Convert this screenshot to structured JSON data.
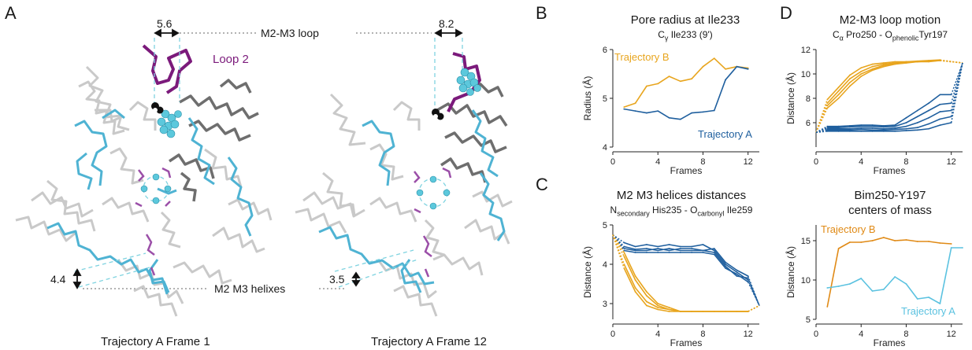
{
  "panels": {
    "A": {
      "letter": "A",
      "loop_label": "M2-M3 loop",
      "helix_label": "M2 M3 helixes",
      "loop2_label": "Loop 2",
      "frame1": {
        "caption": "Trajectory A Frame 1",
        "loop_distance": "5.6",
        "helix_distance": "4.4"
      },
      "frame12": {
        "caption": "Trajectory A Frame 12",
        "loop_distance": "8.2",
        "helix_distance": "3.5"
      }
    },
    "B": {
      "letter": "B",
      "title": "Pore radius at Ile233",
      "subtitle": "Cγ Ile233 (9')"
    },
    "C": {
      "letter": "C",
      "title": "M2 M3 helices distances",
      "subtitle_parts": [
        "N",
        "secondary",
        " His235 - O",
        "carbonyl",
        " Ile259"
      ]
    },
    "D": {
      "letter": "D",
      "title": "M2-M3 loop motion",
      "subtitle_parts": [
        "C",
        "α",
        " Pro250 - O",
        "phenolic",
        "Tyr197"
      ]
    },
    "E": {
      "title_line1": "Bim250-Y197",
      "title_line2": "centers of mass"
    }
  },
  "colors": {
    "traj_a": "#1f5f9e",
    "traj_b": "#e8a51e",
    "traj_b_dark": "#e08a16",
    "traj_a_light": "#5bc2e0",
    "loop2": "#7b1a7b",
    "cyan": "#4fb3d3"
  },
  "chart_data": [
    {
      "id": "B",
      "type": "line",
      "title": "Pore radius at Ile233",
      "subtitle": "Cγ Ile233 (9')",
      "xlabel": "Frames",
      "ylabel": "Radius (Å)",
      "xlim": [
        0,
        13
      ],
      "ylim": [
        4,
        6
      ],
      "xticks": [
        0,
        4,
        8,
        12
      ],
      "yticks": [
        4,
        5,
        6
      ],
      "series": [
        {
          "name": "Trajectory B",
          "color": "#e8a51e",
          "x": [
            1,
            2,
            3,
            4,
            5,
            6,
            7,
            8,
            9,
            10,
            11,
            12
          ],
          "y": [
            4.82,
            4.9,
            5.25,
            5.3,
            5.45,
            5.35,
            5.4,
            5.65,
            5.82,
            5.6,
            5.65,
            5.62
          ]
        },
        {
          "name": "Trajectory A",
          "color": "#1f5f9e",
          "x": [
            1,
            2,
            3,
            4,
            5,
            6,
            7,
            8,
            9,
            10,
            11,
            12
          ],
          "y": [
            4.78,
            4.74,
            4.7,
            4.74,
            4.6,
            4.57,
            4.7,
            4.72,
            4.75,
            5.38,
            5.65,
            5.6
          ]
        }
      ]
    },
    {
      "id": "C",
      "type": "line",
      "title": "M2 M3 helices distances",
      "xlabel": "Frames",
      "ylabel": "Distance (Å)",
      "xlim": [
        0,
        13
      ],
      "ylim": [
        2.6,
        5
      ],
      "xticks": [
        0,
        4,
        8,
        12
      ],
      "yticks": [
        3,
        4,
        5
      ],
      "series": [
        {
          "color": "#1f5f9e",
          "x": [
            1,
            2,
            3,
            4,
            5,
            6,
            7,
            8,
            9,
            10,
            11,
            12
          ],
          "y": [
            4.45,
            4.38,
            4.4,
            4.35,
            4.4,
            4.35,
            4.35,
            4.35,
            4.4,
            4.05,
            3.85,
            3.7
          ]
        },
        {
          "color": "#1f5f9e",
          "x": [
            1,
            2,
            3,
            4,
            5,
            6,
            7,
            8,
            9,
            10,
            11,
            12
          ],
          "y": [
            4.35,
            4.3,
            4.3,
            4.3,
            4.3,
            4.3,
            4.3,
            4.3,
            4.25,
            3.9,
            3.75,
            3.55
          ]
        },
        {
          "color": "#1f5f9e",
          "x": [
            1,
            2,
            3,
            4,
            5,
            6,
            7,
            8,
            9,
            10,
            11,
            12
          ],
          "y": [
            4.55,
            4.45,
            4.5,
            4.45,
            4.5,
            4.45,
            4.45,
            4.5,
            4.35,
            4.0,
            3.8,
            3.6
          ]
        },
        {
          "color": "#1f5f9e",
          "x": [
            1,
            2,
            3,
            4,
            5,
            6,
            7,
            8,
            9,
            10,
            11,
            12
          ],
          "y": [
            4.4,
            4.35,
            4.35,
            4.4,
            4.35,
            4.4,
            4.4,
            4.35,
            4.3,
            3.95,
            3.7,
            3.65
          ]
        },
        {
          "color": "#e8a51e",
          "x": [
            1,
            2,
            3,
            4,
            5,
            6,
            7,
            8,
            9,
            10,
            11,
            12
          ],
          "y": [
            4.2,
            3.6,
            3.2,
            2.95,
            2.85,
            2.8,
            2.8,
            2.8,
            2.8,
            2.8,
            2.8,
            2.8
          ]
        },
        {
          "color": "#e8a51e",
          "x": [
            1,
            2,
            3,
            4,
            5,
            6,
            7,
            8,
            9,
            10,
            11,
            12
          ],
          "y": [
            4.0,
            3.4,
            3.05,
            2.9,
            2.85,
            2.8,
            2.8,
            2.8,
            2.8,
            2.8,
            2.8,
            2.8
          ]
        },
        {
          "color": "#e8a51e",
          "x": [
            1,
            2,
            3,
            4,
            5,
            6,
            7,
            8,
            9,
            10,
            11,
            12
          ],
          "y": [
            4.3,
            3.7,
            3.3,
            3.0,
            2.9,
            2.8,
            2.8,
            2.8,
            2.8,
            2.8,
            2.8,
            2.8
          ]
        },
        {
          "color": "#e8a51e",
          "x": [
            1,
            2,
            3,
            4,
            5,
            6,
            7,
            8,
            9,
            10,
            11,
            12
          ],
          "y": [
            3.9,
            3.3,
            2.95,
            2.85,
            2.8,
            2.8,
            2.8,
            2.8,
            2.8,
            2.8,
            2.8,
            2.8
          ]
        }
      ]
    },
    {
      "id": "D",
      "type": "line",
      "title": "M2-M3 loop motion",
      "xlabel": "Frames",
      "ylabel": "Distance (Å)",
      "xlim": [
        0,
        13
      ],
      "ylim": [
        4,
        12
      ],
      "xticks": [
        0,
        4,
        8,
        12
      ],
      "yticks": [
        6,
        8,
        10,
        12
      ],
      "series": [
        {
          "color": "#e8a51e",
          "x": [
            1,
            2,
            3,
            4,
            5,
            6,
            7,
            8,
            9,
            10,
            11
          ],
          "y": [
            7.6,
            8.6,
            9.6,
            10.2,
            10.6,
            10.8,
            10.9,
            11.0,
            11.0,
            11.05,
            11.1
          ]
        },
        {
          "color": "#e8a51e",
          "x": [
            1,
            2,
            3,
            4,
            5,
            6,
            7,
            8,
            9,
            10,
            11
          ],
          "y": [
            7.2,
            8.0,
            9.0,
            9.8,
            10.3,
            10.6,
            10.8,
            10.9,
            11.0,
            11.0,
            11.1
          ]
        },
        {
          "color": "#e8a51e",
          "x": [
            1,
            2,
            3,
            4,
            5,
            6,
            7,
            8,
            9,
            10,
            11
          ],
          "y": [
            7.9,
            8.9,
            9.9,
            10.5,
            10.8,
            10.9,
            11.0,
            11.0,
            11.05,
            11.1,
            11.15
          ]
        },
        {
          "color": "#e8a51e",
          "x": [
            1,
            2,
            3,
            4,
            5,
            6,
            7,
            8,
            9,
            10,
            11
          ],
          "y": [
            7.4,
            8.3,
            9.3,
            10.0,
            10.4,
            10.7,
            10.85,
            10.95,
            11.0,
            11.05,
            11.1
          ]
        },
        {
          "color": "#1f5f9e",
          "x": [
            1,
            2,
            3,
            4,
            5,
            6,
            7,
            8,
            9,
            10,
            11,
            12
          ],
          "y": [
            5.7,
            5.7,
            5.75,
            5.8,
            5.8,
            5.75,
            5.8,
            6.4,
            7.0,
            7.6,
            8.3,
            8.3
          ]
        },
        {
          "color": "#1f5f9e",
          "x": [
            1,
            2,
            3,
            4,
            5,
            6,
            7,
            8,
            9,
            10,
            11,
            12
          ],
          "y": [
            5.6,
            5.6,
            5.65,
            5.7,
            5.7,
            5.65,
            5.7,
            6.0,
            6.5,
            7.0,
            7.5,
            7.6
          ]
        },
        {
          "color": "#1f5f9e",
          "x": [
            1,
            2,
            3,
            4,
            5,
            6,
            7,
            8,
            9,
            10,
            11,
            12
          ],
          "y": [
            5.5,
            5.5,
            5.5,
            5.55,
            5.55,
            5.5,
            5.55,
            5.7,
            6.0,
            6.4,
            6.9,
            7.0
          ]
        },
        {
          "color": "#1f5f9e",
          "x": [
            1,
            2,
            3,
            4,
            5,
            6,
            7,
            8,
            9,
            10,
            11,
            12
          ],
          "y": [
            5.4,
            5.4,
            5.4,
            5.45,
            5.4,
            5.4,
            5.45,
            5.5,
            5.6,
            5.9,
            6.3,
            6.5
          ]
        },
        {
          "color": "#1f5f9e",
          "x": [
            1,
            2,
            3,
            4,
            5,
            6,
            7,
            8,
            9,
            10,
            11,
            12
          ],
          "y": [
            5.3,
            5.3,
            5.3,
            5.3,
            5.3,
            5.3,
            5.3,
            5.35,
            5.4,
            5.5,
            5.8,
            6.0
          ]
        }
      ]
    },
    {
      "id": "E",
      "type": "line",
      "title": "Bim250-Y197 centers of mass",
      "xlabel": "Frames",
      "ylabel": "Distance (Å)",
      "xlim": [
        0,
        13
      ],
      "ylim": [
        5,
        17
      ],
      "xticks": [
        0,
        4,
        8,
        12
      ],
      "yticks": [
        5,
        10,
        15
      ],
      "series": [
        {
          "name": "Trajectory B",
          "color": "#e08a16",
          "x": [
            1,
            2,
            3,
            4,
            5,
            6,
            7,
            8,
            9,
            10,
            11,
            12
          ],
          "y": [
            6.6,
            14.0,
            14.8,
            14.8,
            15.0,
            15.4,
            15.0,
            15.1,
            14.9,
            14.9,
            14.7,
            14.6
          ]
        },
        {
          "name": "Trajectory A",
          "color": "#5bc2e0",
          "x": [
            1,
            2,
            3,
            4,
            5,
            6,
            7,
            8,
            9,
            10,
            11,
            12,
            13
          ],
          "y": [
            9.0,
            9.2,
            9.5,
            10.2,
            8.6,
            8.8,
            10.4,
            9.5,
            7.6,
            7.8,
            7.0,
            14.1,
            14.1
          ]
        }
      ]
    }
  ]
}
